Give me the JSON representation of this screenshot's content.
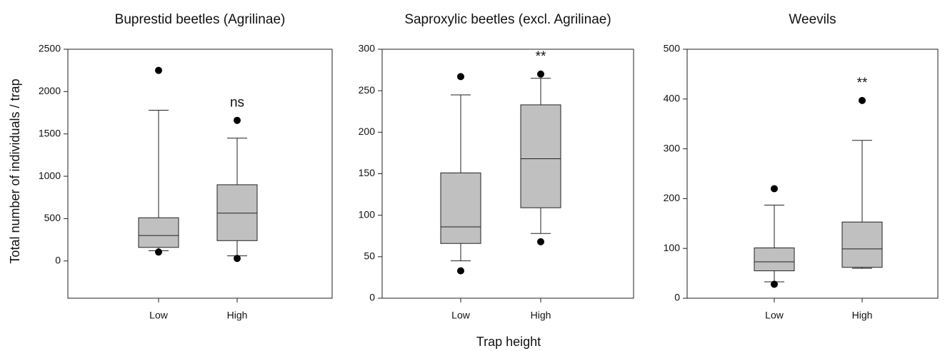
{
  "y_label": "Total number of individuals / trap",
  "x_label": "Trap height",
  "chart_data": [
    {
      "type": "box",
      "title": "Buprestid beetles (Agrilinae)",
      "categories": [
        "Low",
        "High"
      ],
      "boxes": [
        {
          "whisker_low": 120,
          "q1": 160,
          "median": 300,
          "q3": 510,
          "whisker_high": 1780,
          "outliers": [
            2250,
            105
          ]
        },
        {
          "whisker_low": 60,
          "q1": 240,
          "median": 565,
          "q3": 900,
          "whisker_high": 1450,
          "outliers": [
            1660,
            30
          ]
        }
      ],
      "annotations": [
        null,
        "ns"
      ],
      "color": "#c0c0c0",
      "ylim": [
        -440,
        2500
      ],
      "yticks": [
        0,
        500,
        1000,
        1500,
        2000,
        2500
      ]
    },
    {
      "type": "box",
      "title": "Saproxylic beetles (excl. Agrilinae)",
      "categories": [
        "Low",
        "High"
      ],
      "boxes": [
        {
          "whisker_low": 45,
          "q1": 66,
          "median": 86,
          "q3": 151,
          "whisker_high": 245,
          "outliers": [
            267,
            33
          ]
        },
        {
          "whisker_low": 78,
          "q1": 109,
          "median": 168,
          "q3": 233,
          "whisker_high": 265,
          "outliers": [
            270,
            68
          ]
        }
      ],
      "annotations": [
        null,
        "**"
      ],
      "color": "#c0c0c0",
      "ylim": [
        0,
        300
      ],
      "yticks": [
        0,
        50,
        100,
        150,
        200,
        250,
        300
      ]
    },
    {
      "type": "box",
      "title": "Weevils",
      "categories": [
        "Low",
        "High"
      ],
      "boxes": [
        {
          "whisker_low": 33,
          "q1": 55,
          "median": 73,
          "q3": 101,
          "whisker_high": 187,
          "outliers": [
            220,
            28
          ]
        },
        {
          "whisker_low": 60,
          "q1": 62,
          "median": 99,
          "q3": 153,
          "whisker_high": 317,
          "outliers": [
            397
          ]
        }
      ],
      "annotations": [
        null,
        "**"
      ],
      "color": "#c0c0c0",
      "ylim": [
        0,
        500
      ],
      "yticks": [
        0,
        100,
        200,
        300,
        400,
        500
      ]
    }
  ]
}
